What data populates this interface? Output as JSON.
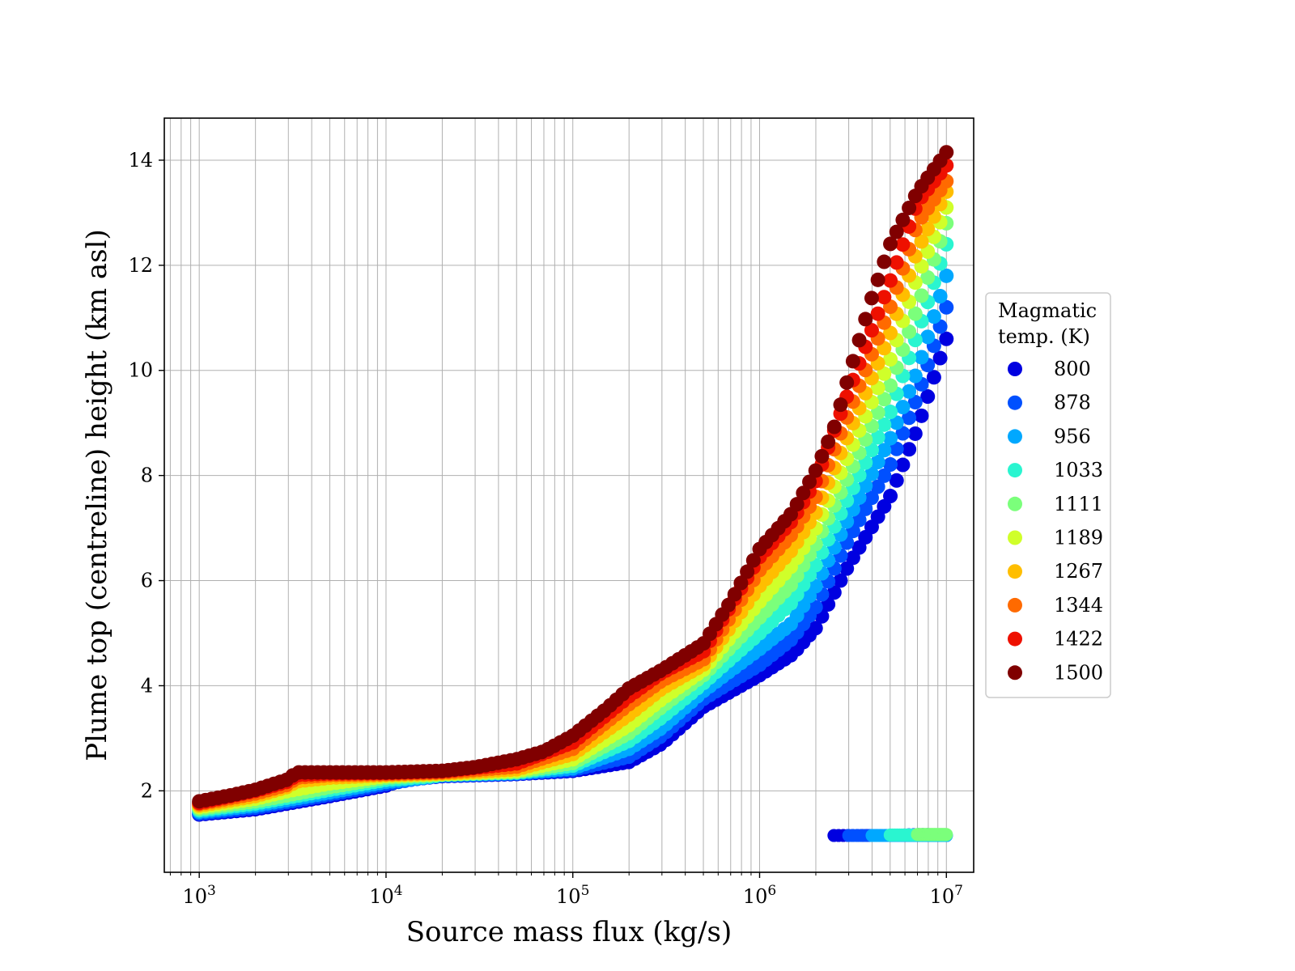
{
  "chart_data": {
    "type": "scatter",
    "title": "",
    "xlabel": "Source mass flux (kg/s)",
    "ylabel": "Plume top (centreline) height (km asl)",
    "xscale": "log",
    "xlim": [
      650,
      14000000
    ],
    "ylim": [
      0.45,
      14.8
    ],
    "grid": "on (major and minor)",
    "x_ticks": [
      {
        "value": 1000,
        "base": "10",
        "exp": "3"
      },
      {
        "value": 10000,
        "base": "10",
        "exp": "4"
      },
      {
        "value": 100000,
        "base": "10",
        "exp": "5"
      },
      {
        "value": 1000000,
        "base": "10",
        "exp": "6"
      },
      {
        "value": 10000000,
        "base": "10",
        "exp": "7"
      }
    ],
    "y_ticks": [
      {
        "value": 2,
        "label": "2"
      },
      {
        "value": 4,
        "label": "4"
      },
      {
        "value": 6,
        "label": "6"
      },
      {
        "value": 8,
        "label": "8"
      },
      {
        "value": 10,
        "label": "10"
      },
      {
        "value": 12,
        "label": "12"
      },
      {
        "value": 14,
        "label": "14"
      }
    ],
    "legend": {
      "title": [
        "Magmatic",
        "temp. (K)"
      ],
      "placement": "outside right"
    },
    "series": [
      {
        "name": "800",
        "color": "#0000e0",
        "x": [
          1000,
          2000,
          5000,
          10000,
          12000,
          20000,
          50000,
          100000,
          200000,
          300000,
          500000,
          1000000,
          1500000,
          2000000,
          3000000,
          5000000,
          7000000,
          10000000
        ],
        "y": [
          1.55,
          1.65,
          1.9,
          2.1,
          2.2,
          2.28,
          2.32,
          2.38,
          2.55,
          2.9,
          3.6,
          4.2,
          4.6,
          5.1,
          6.3,
          7.6,
          8.9,
          10.6
        ],
        "low_x": [
          2500000,
          3000000,
          4000000,
          5000000,
          6000000,
          7000000,
          8000000,
          9000000,
          10000000
        ],
        "low_y": [
          1.15,
          1.15,
          1.15,
          1.15,
          1.16,
          1.17,
          1.17,
          1.16,
          1.15
        ]
      },
      {
        "name": "878",
        "color": "#0050ff",
        "x": [
          1000,
          2000,
          5000,
          10000,
          14000,
          20000,
          50000,
          100000,
          200000,
          300000,
          500000,
          1000000,
          1500000,
          2000000,
          3000000,
          5000000,
          7000000,
          10000000
        ],
        "y": [
          1.57,
          1.68,
          1.93,
          2.13,
          2.22,
          2.29,
          2.33,
          2.4,
          2.65,
          3.05,
          3.75,
          4.4,
          4.9,
          5.5,
          6.8,
          8.2,
          9.5,
          11.2
        ],
        "low_x": [
          3000000,
          4000000,
          5000000,
          6000000,
          7000000,
          8000000,
          9000000,
          10000000
        ],
        "low_y": [
          1.15,
          1.15,
          1.15,
          1.15,
          1.15,
          1.15,
          1.15,
          1.15
        ]
      },
      {
        "name": "956",
        "color": "#00a8ff",
        "x": [
          1000,
          2000,
          5000,
          10000,
          16000,
          20000,
          50000,
          100000,
          200000,
          300000,
          500000,
          1000000,
          1500000,
          2000000,
          3000000,
          5000000,
          7000000,
          10000000
        ],
        "y": [
          1.6,
          1.72,
          1.97,
          2.17,
          2.25,
          2.3,
          2.34,
          2.43,
          2.8,
          3.2,
          3.9,
          4.7,
          5.2,
          5.9,
          7.2,
          8.7,
          10.0,
          11.8
        ],
        "low_x": [
          4000000,
          5000000,
          6000000,
          7000000,
          8000000,
          9000000,
          10000000
        ],
        "low_y": [
          1.15,
          1.15,
          1.15,
          1.15,
          1.15,
          1.15,
          1.15
        ]
      },
      {
        "name": "1033",
        "color": "#2af5d0",
        "x": [
          1000,
          2000,
          5000,
          10000,
          18000,
          20000,
          50000,
          100000,
          200000,
          300000,
          500000,
          1000000,
          1500000,
          2000000,
          3000000,
          5000000,
          7000000,
          10000000
        ],
        "y": [
          1.63,
          1.76,
          2.02,
          2.21,
          2.28,
          2.31,
          2.35,
          2.48,
          2.95,
          3.4,
          4.05,
          5.0,
          5.6,
          6.3,
          7.6,
          9.2,
          10.7,
          12.4
        ],
        "low_x": [
          5000000,
          6000000,
          7000000,
          8000000,
          9000000,
          10000000
        ],
        "low_y": [
          1.16,
          1.16,
          1.16,
          1.16,
          1.16,
          1.16
        ]
      },
      {
        "name": "1111",
        "color": "#7bff7b",
        "x": [
          1000,
          2000,
          5000,
          10000,
          20000,
          50000,
          100000,
          200000,
          300000,
          500000,
          1000000,
          1500000,
          2000000,
          3000000,
          5000000,
          7000000,
          10000000
        ],
        "y": [
          1.66,
          1.8,
          2.07,
          2.25,
          2.31,
          2.36,
          2.53,
          3.1,
          3.6,
          4.2,
          5.3,
          5.95,
          6.7,
          8.0,
          9.7,
          11.2,
          12.8
        ],
        "low_x": [
          7000000,
          8000000,
          9000000,
          10000000
        ],
        "low_y": [
          1.17,
          1.17,
          1.17,
          1.17
        ]
      },
      {
        "name": "1189",
        "color": "#d0ff2a",
        "x": [
          1000,
          2000,
          3000,
          5000,
          10000,
          20000,
          50000,
          100000,
          200000,
          300000,
          500000,
          1000000,
          1500000,
          2000000,
          3000000,
          5000000,
          7000000,
          10000000
        ],
        "y": [
          1.69,
          1.85,
          2.0,
          2.14,
          2.28,
          2.32,
          2.38,
          2.6,
          3.25,
          3.75,
          4.3,
          5.6,
          6.3,
          7.0,
          8.4,
          10.2,
          11.8,
          13.1
        ],
        "low_x": [],
        "low_y": []
      },
      {
        "name": "1267",
        "color": "#ffbe00",
        "x": [
          1000,
          2000,
          3000,
          3300,
          5000,
          10000,
          20000,
          50000,
          100000,
          200000,
          300000,
          500000,
          1000000,
          1500000,
          2000000,
          3000000,
          5000000,
          7000000,
          10000000
        ],
        "y": [
          1.72,
          1.9,
          2.08,
          2.18,
          2.25,
          2.3,
          2.33,
          2.41,
          2.7,
          3.45,
          3.95,
          4.4,
          5.9,
          6.6,
          7.3,
          8.8,
          10.7,
          12.3,
          13.4
        ],
        "low_x": [],
        "low_y": []
      },
      {
        "name": "1344",
        "color": "#ff6a00",
        "x": [
          1000,
          2000,
          3000,
          3300,
          5000,
          10000,
          20000,
          50000,
          100000,
          200000,
          300000,
          500000,
          1000000,
          1500000,
          2000000,
          3000000,
          5000000,
          7000000,
          10000000
        ],
        "y": [
          1.75,
          1.95,
          2.12,
          2.25,
          2.3,
          2.32,
          2.35,
          2.46,
          2.8,
          3.65,
          4.1,
          4.5,
          6.2,
          6.9,
          7.6,
          9.2,
          11.2,
          12.8,
          13.6
        ],
        "low_x": [],
        "low_y": []
      },
      {
        "name": "1422",
        "color": "#ee1000",
        "x": [
          1000,
          2000,
          3000,
          3300,
          5000,
          10000,
          20000,
          50000,
          100000,
          200000,
          300000,
          500000,
          1000000,
          1500000,
          2000000,
          3000000,
          5000000,
          7000000,
          10000000
        ],
        "y": [
          1.77,
          2.0,
          2.18,
          2.3,
          2.33,
          2.34,
          2.37,
          2.52,
          2.92,
          3.8,
          4.25,
          4.65,
          6.45,
          7.15,
          7.9,
          9.6,
          11.7,
          13.2,
          13.9
        ],
        "low_x": [],
        "low_y": []
      },
      {
        "name": "1500",
        "color": "#800000",
        "x": [
          1000,
          1500,
          2000,
          3000,
          3300,
          5000,
          10000,
          20000,
          30000,
          50000,
          70000,
          100000,
          150000,
          200000,
          300000,
          500000,
          700000,
          1000000,
          1500000,
          2000000,
          2500000,
          3000000,
          4000000,
          5000000,
          7000000,
          10000000
        ],
        "y": [
          1.8,
          1.92,
          2.02,
          2.22,
          2.35,
          2.35,
          2.35,
          2.38,
          2.45,
          2.6,
          2.75,
          3.05,
          3.55,
          3.95,
          4.3,
          4.8,
          5.6,
          6.6,
          7.3,
          8.1,
          8.9,
          9.9,
          11.4,
          12.4,
          13.4,
          14.15
        ],
        "low_x": [],
        "low_y": []
      }
    ]
  }
}
